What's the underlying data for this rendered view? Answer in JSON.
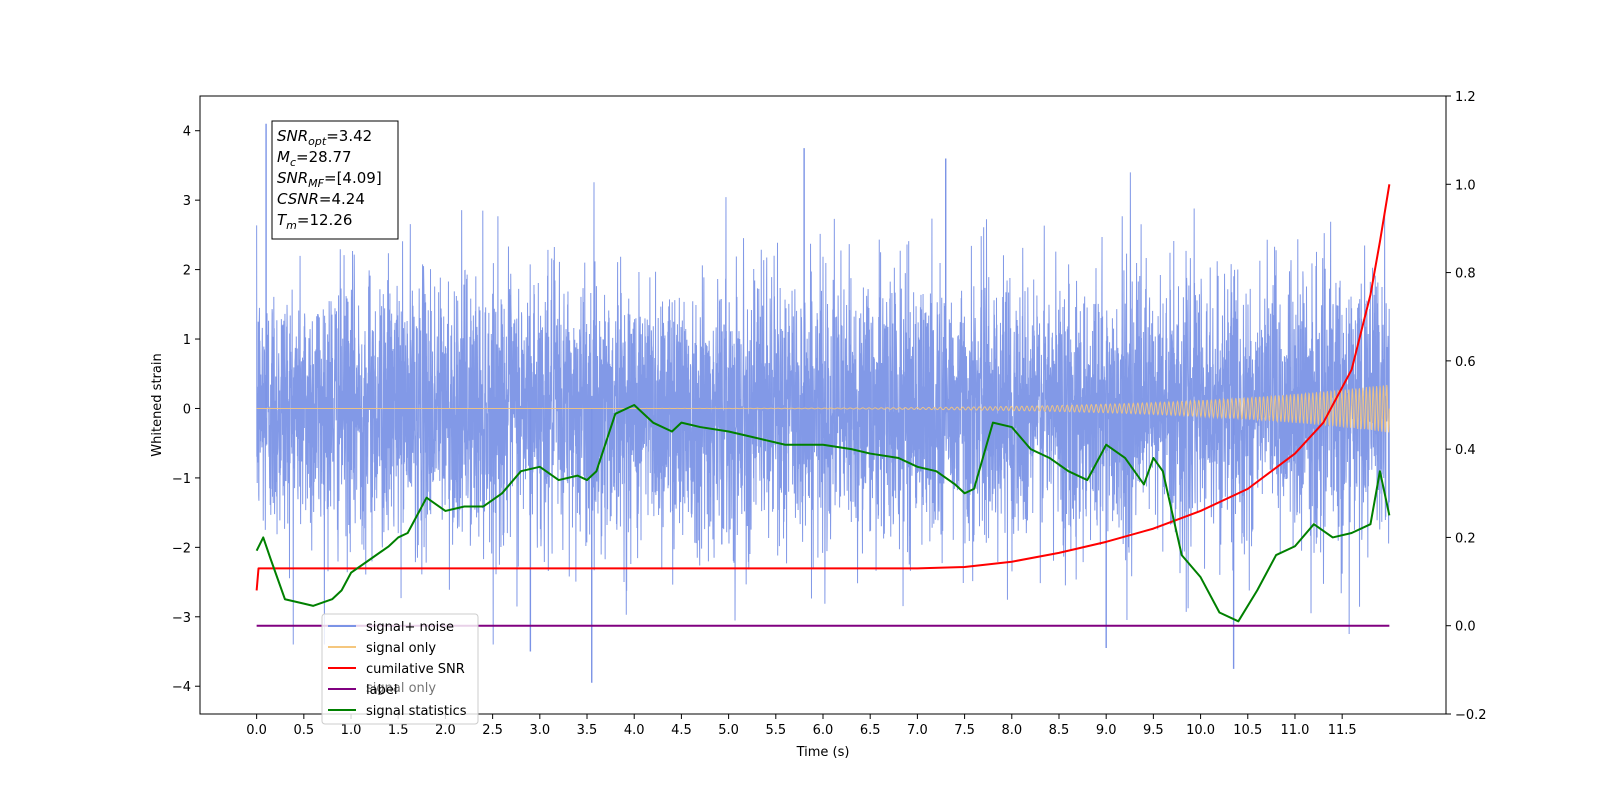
{
  "chart_data": {
    "type": "line",
    "xlabel": "Time (s)",
    "ylabel": "Whitened strain",
    "xlim": [
      -0.6,
      12.6
    ],
    "ylim": [
      -4.4,
      4.5
    ],
    "y2lim": [
      -0.2,
      1.2
    ],
    "x_ticks": [
      "0.0",
      "0.5",
      "1.0",
      "1.5",
      "2.0",
      "2.5",
      "3.0",
      "3.5",
      "4.0",
      "4.5",
      "5.0",
      "5.5",
      "6.0",
      "6.5",
      "7.0",
      "7.5",
      "8.0",
      "8.5",
      "9.0",
      "9.5",
      "10.0",
      "10.5",
      "11.0",
      "11.5"
    ],
    "y_ticks": [
      "4",
      "3",
      "2",
      "1",
      "0",
      "−1",
      "−2",
      "−3",
      "−4"
    ],
    "y2_ticks": [
      "1.2",
      "1.0",
      "0.8",
      "0.6",
      "0.4",
      "0.2",
      "0.0",
      "−0.2"
    ],
    "grid": false,
    "legend_position": "lower-left",
    "legend": [
      {
        "label": "signal+ noise",
        "color": "#7b93e6"
      },
      {
        "label": "signal only",
        "color": "#f5c77e"
      },
      {
        "label": "cumilative SNR",
        "color": "#ff0000"
      },
      {
        "label": "label",
        "color": "#800080"
      },
      {
        "label": "signal statistics",
        "color": "#008000"
      }
    ],
    "legend_ghost_text": "signal only",
    "stats_box": [
      {
        "main": "SNR",
        "sub": "opt",
        "value": "=3.42"
      },
      {
        "main": "M",
        "sub": "c",
        "value": "=28.77"
      },
      {
        "main": "SNR",
        "sub": "MF",
        "value": "=[4.09]"
      },
      {
        "main": "CSNR",
        "sub": "",
        "value": "=4.24"
      },
      {
        "main": "T",
        "sub": "m",
        "value": "=12.26"
      }
    ],
    "series": [
      {
        "name": "signal+ noise",
        "axis": "left",
        "color": "#7b93e6",
        "style": "dense-noise",
        "x_range": [
          0.0,
          12.0
        ],
        "amplitude_std": 1.0,
        "envelope_approx": [
          -2.5,
          2.5
        ],
        "notable_spikes": [
          [
            0.1,
            4.1
          ],
          [
            3.55,
            -3.95
          ],
          [
            5.8,
            3.75
          ],
          [
            10.35,
            -3.75
          ],
          [
            7.3,
            3.6
          ],
          [
            2.9,
            -3.5
          ],
          [
            9.0,
            -3.45
          ]
        ]
      },
      {
        "name": "signal only",
        "axis": "left",
        "color": "#f5c77e",
        "style": "chirp",
        "x_range": [
          0.0,
          12.0
        ],
        "start_amplitude": 0.0,
        "end_amplitude": 0.35
      },
      {
        "name": "cumilative SNR",
        "axis": "right",
        "x": [
          0.0,
          0.02,
          1.0,
          2.0,
          3.0,
          4.0,
          5.0,
          6.0,
          7.0,
          7.5,
          8.0,
          8.5,
          9.0,
          9.5,
          10.0,
          10.5,
          11.0,
          11.3,
          11.6,
          11.8,
          11.9,
          12.0
        ],
        "y": [
          0.08,
          0.13,
          0.13,
          0.13,
          0.13,
          0.13,
          0.13,
          0.13,
          0.13,
          0.133,
          0.145,
          0.165,
          0.19,
          0.22,
          0.26,
          0.31,
          0.39,
          0.46,
          0.58,
          0.75,
          0.87,
          1.0
        ]
      },
      {
        "name": "label",
        "axis": "right",
        "x": [
          0.0,
          12.0
        ],
        "y": [
          0.0,
          0.0
        ]
      },
      {
        "name": "signal statistics",
        "axis": "right",
        "x": [
          0.0,
          0.07,
          0.15,
          0.3,
          0.5,
          0.6,
          0.8,
          0.9,
          1.0,
          1.2,
          1.4,
          1.5,
          1.6,
          1.8,
          2.0,
          2.2,
          2.4,
          2.6,
          2.8,
          3.0,
          3.2,
          3.4,
          3.5,
          3.6,
          3.8,
          4.0,
          4.2,
          4.4,
          4.5,
          4.7,
          5.0,
          5.2,
          5.4,
          5.6,
          5.8,
          6.0,
          6.3,
          6.5,
          6.8,
          7.0,
          7.2,
          7.4,
          7.5,
          7.6,
          7.8,
          8.0,
          8.2,
          8.4,
          8.6,
          8.8,
          9.0,
          9.2,
          9.4,
          9.5,
          9.6,
          9.8,
          10.0,
          10.2,
          10.4,
          10.6,
          10.8,
          11.0,
          11.2,
          11.4,
          11.6,
          11.8,
          11.9,
          12.0
        ],
        "y": [
          0.17,
          0.2,
          0.15,
          0.06,
          0.05,
          0.045,
          0.06,
          0.08,
          0.12,
          0.15,
          0.18,
          0.2,
          0.21,
          0.29,
          0.26,
          0.27,
          0.27,
          0.3,
          0.35,
          0.36,
          0.33,
          0.34,
          0.33,
          0.35,
          0.48,
          0.5,
          0.46,
          0.44,
          0.46,
          0.45,
          0.44,
          0.43,
          0.42,
          0.41,
          0.41,
          0.41,
          0.4,
          0.39,
          0.38,
          0.36,
          0.35,
          0.32,
          0.3,
          0.31,
          0.46,
          0.45,
          0.4,
          0.38,
          0.35,
          0.33,
          0.41,
          0.38,
          0.32,
          0.38,
          0.35,
          0.16,
          0.11,
          0.03,
          0.01,
          0.08,
          0.16,
          0.18,
          0.23,
          0.2,
          0.21,
          0.23,
          0.35,
          0.25
        ]
      }
    ]
  }
}
